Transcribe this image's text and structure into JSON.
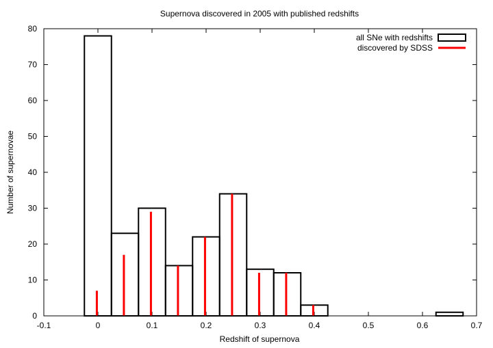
{
  "chart_data": {
    "type": "bar",
    "title": "Supernova discovered in 2005 with published redshifts",
    "xlabel": "Redshift of supernova",
    "ylabel": "Number of supernovae",
    "xlim": [
      -0.1,
      0.7
    ],
    "ylim": [
      0,
      80
    ],
    "x_ticks": [
      -0.1,
      0,
      0.1,
      0.2,
      0.3,
      0.4,
      0.5,
      0.6,
      0.7
    ],
    "x_tick_labels": [
      "-0.1",
      "0",
      "0.1",
      "0.2",
      "0.3",
      "0.4",
      "0.5",
      "0.6",
      "0.7"
    ],
    "y_ticks": [
      0,
      10,
      20,
      30,
      40,
      50,
      60,
      70,
      80
    ],
    "y_tick_labels": [
      "0",
      "10",
      "20",
      "30",
      "40",
      "50",
      "60",
      "70",
      "80"
    ],
    "bin_width": 0.05,
    "x": [
      0,
      0.05,
      0.1,
      0.15,
      0.2,
      0.25,
      0.3,
      0.35,
      0.4,
      0.65
    ],
    "series": [
      {
        "name": "all SNe with redshifts",
        "style": "boxes",
        "color": "#000000",
        "values": [
          78,
          23,
          30,
          14,
          22,
          34,
          13,
          12,
          3,
          1
        ]
      },
      {
        "name": "discovered by SDSS",
        "style": "impulses",
        "color": "#ff0000",
        "values": [
          7,
          17,
          29,
          14,
          22,
          34,
          12,
          12,
          3,
          0
        ]
      }
    ],
    "legend_position": "top-right",
    "grid": false
  }
}
